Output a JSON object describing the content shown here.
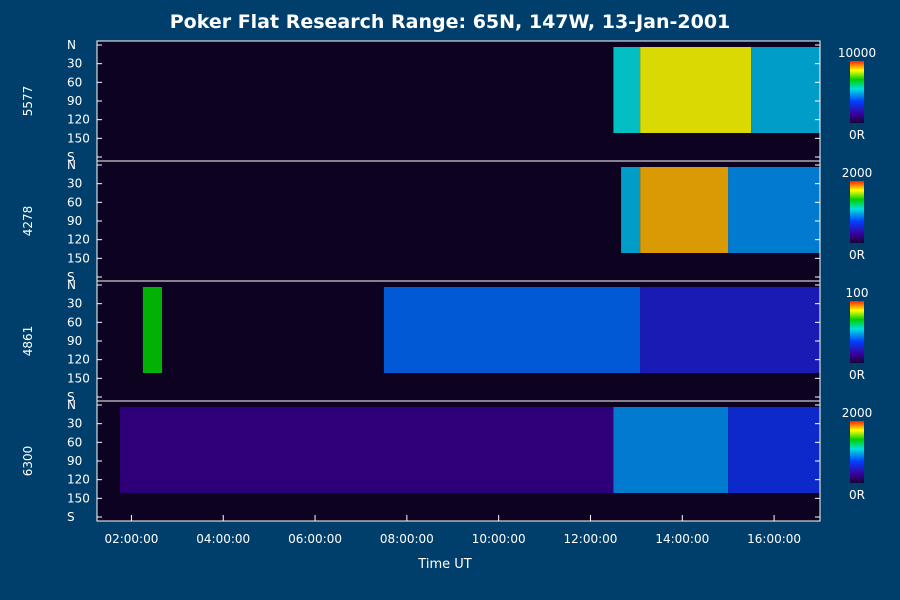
{
  "chart_data": {
    "type": "heatmap",
    "title": "Poker Flat Research Range: 65N, 147W, 13-Jan-2001",
    "xlabel": "Time UT",
    "x_ticks": [
      "02:00:00",
      "04:00:00",
      "06:00:00",
      "08:00:00",
      "10:00:00",
      "12:00:00",
      "14:00:00",
      "16:00:00"
    ],
    "xlim": [
      "01:15:00",
      "17:00:00"
    ],
    "y_ticks": [
      "N",
      "30",
      "60",
      "90",
      "120",
      "150",
      "S"
    ],
    "ylim": [
      0,
      180
    ],
    "panels": [
      {
        "ylabel": "5577",
        "colorbar": {
          "max_label": "10000",
          "min_label": "0R",
          "max": 10000,
          "min": 0
        },
        "events": [
          {
            "from": "12:30:00",
            "to": "13:05:00",
            "level": 0.55
          },
          {
            "from": "13:05:00",
            "to": "15:30:00",
            "level": 0.85
          },
          {
            "from": "15:30:00",
            "to": "17:00:00",
            "level": 0.5
          }
        ]
      },
      {
        "ylabel": "4278",
        "colorbar": {
          "max_label": "2000",
          "min_label": "0R",
          "max": 2000,
          "min": 0
        },
        "events": [
          {
            "from": "12:40:00",
            "to": "13:05:00",
            "level": 0.5
          },
          {
            "from": "13:05:00",
            "to": "15:00:00",
            "level": 0.9
          },
          {
            "from": "15:00:00",
            "to": "17:00:00",
            "level": 0.45
          }
        ]
      },
      {
        "ylabel": "4861",
        "colorbar": {
          "max_label": "100",
          "min_label": "0R",
          "max": 100,
          "min": 0
        },
        "events": [
          {
            "from": "02:15:00",
            "to": "02:40:00",
            "level": 0.7
          },
          {
            "from": "07:30:00",
            "to": "13:05:00",
            "level": 0.4
          },
          {
            "from": "13:05:00",
            "to": "17:00:00",
            "level": 0.25
          }
        ]
      },
      {
        "ylabel": "6300",
        "colorbar": {
          "max_label": "2000",
          "min_label": "0R",
          "max": 2000,
          "min": 0
        },
        "events": [
          {
            "from": "01:45:00",
            "to": "12:30:00",
            "level": 0.12
          },
          {
            "from": "12:30:00",
            "to": "15:00:00",
            "level": 0.45
          },
          {
            "from": "15:00:00",
            "to": "17:00:00",
            "level": 0.3
          }
        ]
      }
    ]
  }
}
